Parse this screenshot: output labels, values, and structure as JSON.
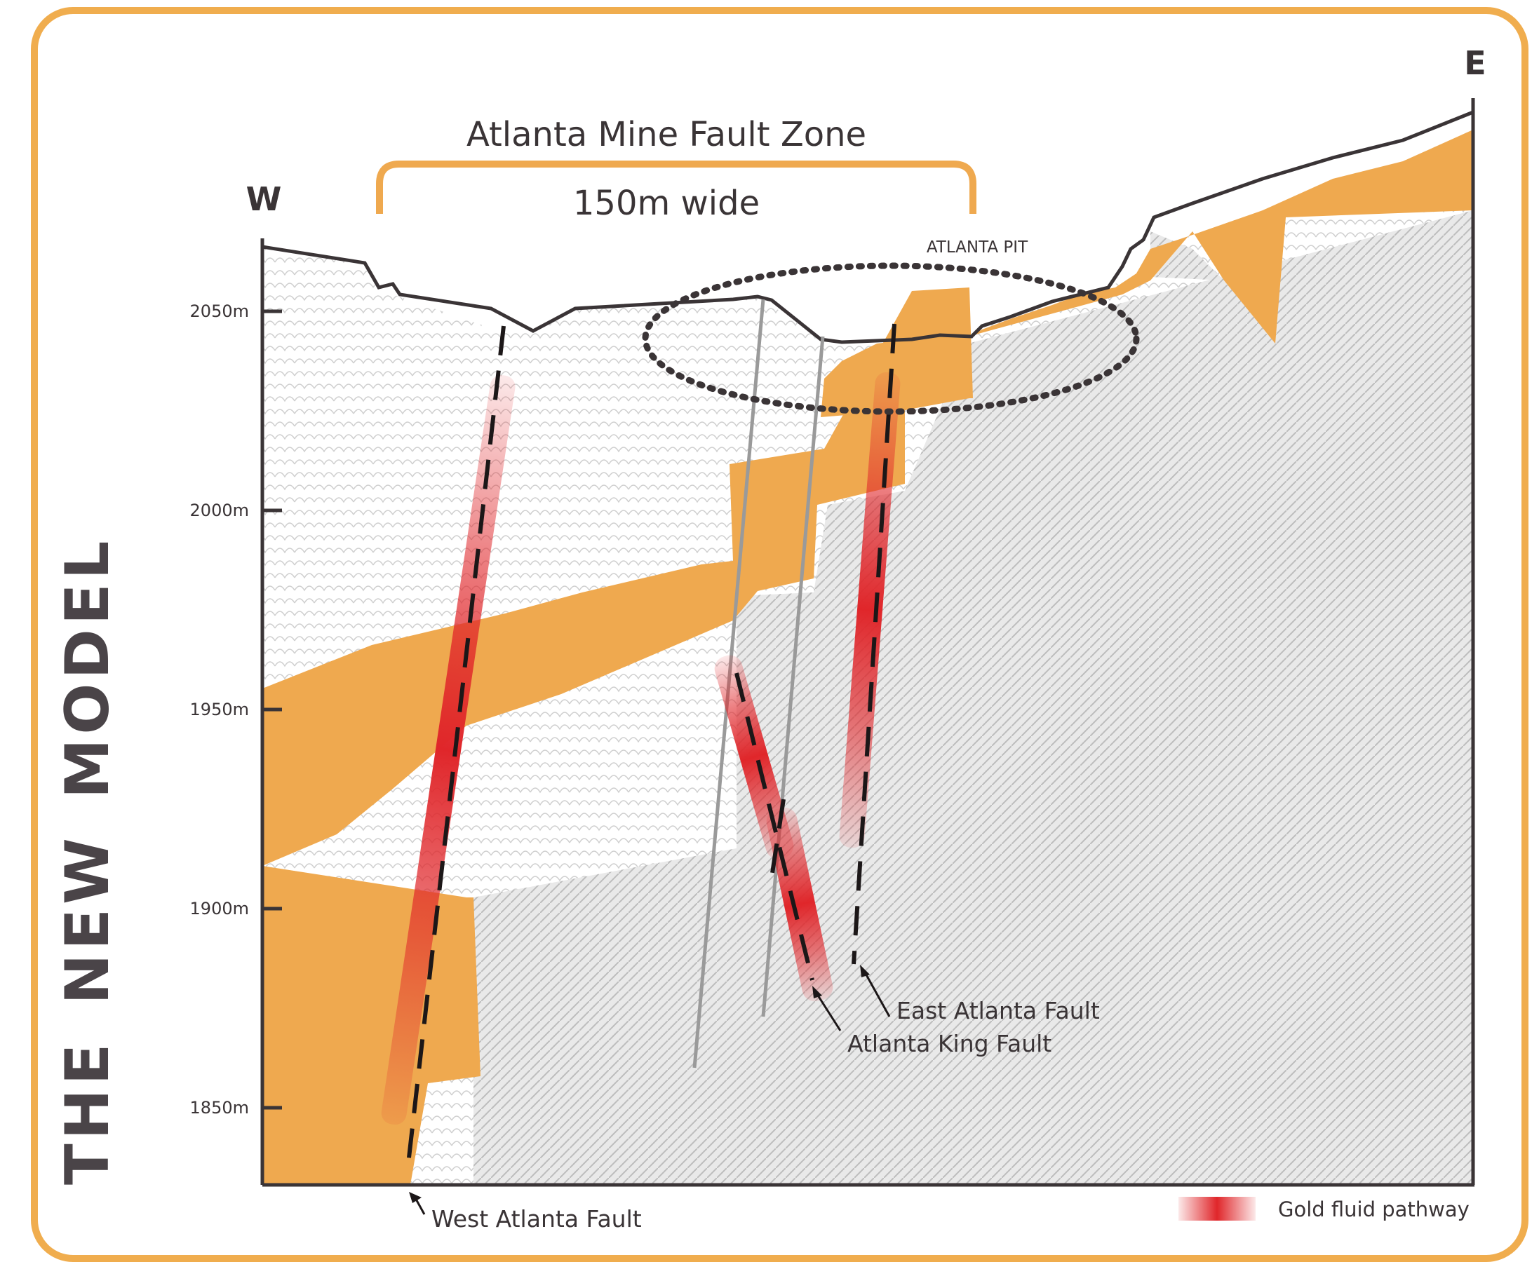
{
  "side_title": "THE NEW MODEL",
  "compass": {
    "west": "W",
    "east": "E"
  },
  "fault_zone": {
    "title": "Atlanta Mine Fault Zone",
    "width_label": "150m wide"
  },
  "pit_label": "ATLANTA PIT",
  "elevation_ticks": [
    "2050m",
    "2000m",
    "1950m",
    "1900m",
    "1850m"
  ],
  "faults": {
    "west": "West Atlanta Fault",
    "king": "Atlanta King Fault",
    "east": "East Atlanta Fault"
  },
  "legend": {
    "label": "Gold fluid pathway"
  },
  "colors": {
    "accent": "#f0ad4e",
    "strata": "#efa94f",
    "fluid": "#e0262a",
    "axis": "#3a3436"
  }
}
